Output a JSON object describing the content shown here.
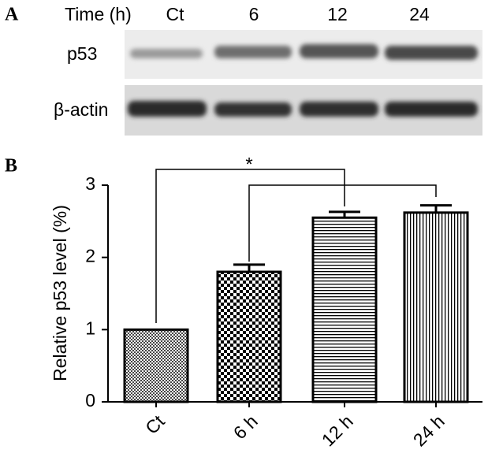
{
  "panel_a": {
    "panel_label": "A",
    "time_label": "Time (h)",
    "lanes": [
      "Ct",
      "6",
      "12",
      "24"
    ],
    "blots": [
      "p53",
      "β-actin"
    ]
  },
  "chart_data": {
    "type": "bar",
    "panel_label": "B",
    "ylabel": "Relative p53 level (%)",
    "categories": [
      "Ct",
      "6 h",
      "12 h",
      "24 h"
    ],
    "values": [
      1.0,
      1.8,
      2.55,
      2.62
    ],
    "errors": [
      0,
      0.1,
      0.08,
      0.1
    ],
    "ylim": [
      0,
      3
    ],
    "yticks": [
      0,
      1,
      2,
      3
    ],
    "annotation": "*"
  }
}
